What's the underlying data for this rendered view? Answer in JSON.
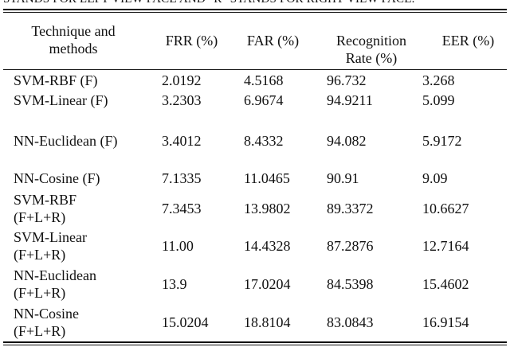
{
  "caption": "STANDS FOR LEFT VIEW FACE AND \"R\" STANDS FOR RIGHT VIEW FACE.",
  "table": {
    "headers": [
      [
        "Technique and",
        "methods"
      ],
      [
        "FRR (%)"
      ],
      [
        "FAR (%)"
      ],
      [
        "Recognition",
        "Rate (%)"
      ],
      [
        "EER (%)"
      ]
    ],
    "rows": [
      {
        "method": [
          "SVM-RBF (F)"
        ],
        "frr": "2.0192",
        "far": "4.5168",
        "rr": "96.732",
        "eer": "3.268"
      },
      {
        "method": [
          "SVM-Linear (F)"
        ],
        "frr": "3.2303",
        "far": "6.9674",
        "rr": "94.9211",
        "eer": "5.099"
      },
      {
        "method": [
          "NN-Euclidean (F)"
        ],
        "frr": "3.4012",
        "far": "8.4332",
        "rr": "94.082",
        "eer": "5.9172"
      },
      {
        "method": [
          "NN-Cosine (F)"
        ],
        "frr": "7.1335",
        "far": "11.0465",
        "rr": "90.91",
        "eer": "9.09"
      },
      {
        "method": [
          "SVM-RBF",
          "(F+L+R)"
        ],
        "frr": "7.3453",
        "far": "13.9802",
        "rr": "89.3372",
        "eer": "10.6627"
      },
      {
        "method": [
          "SVM-Linear",
          "(F+L+R)"
        ],
        "frr": "11.00",
        "far": "14.4328",
        "rr": "87.2876",
        "eer": "12.7164"
      },
      {
        "method": [
          "NN-Euclidean",
          "(F+L+R)"
        ],
        "frr": "13.9",
        "far": "17.0204",
        "rr": "84.5398",
        "eer": "15.4602"
      },
      {
        "method": [
          "NN-Cosine",
          "(F+L+R)"
        ],
        "frr": "15.0204",
        "far": "18.8104",
        "rr": "83.0843",
        "eer": "16.9154"
      }
    ]
  }
}
